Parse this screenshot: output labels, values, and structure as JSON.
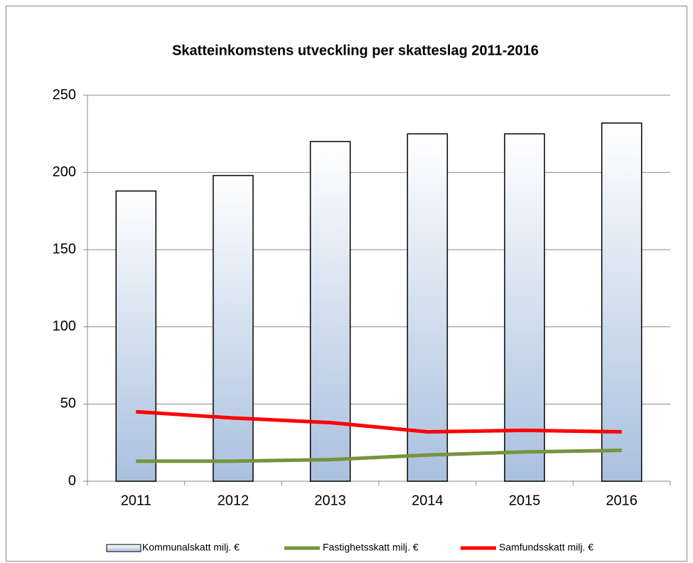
{
  "chart_data": {
    "type": "combo",
    "title": "Skatteinkomstens utveckling per skatteslag 2011-2016",
    "categories": [
      "2011",
      "2012",
      "2013",
      "2014",
      "2015",
      "2016"
    ],
    "series": [
      {
        "name": "Kommunalskatt milj. €",
        "type": "bar",
        "color": "#a9c0de",
        "values": [
          188,
          198,
          220,
          225,
          225,
          232
        ]
      },
      {
        "name": "Fastighetsskatt milj. €",
        "type": "line",
        "color": "#77933c",
        "values": [
          13,
          13,
          14,
          17,
          19,
          20
        ]
      },
      {
        "name": "Samfundsskatt milj. €",
        "type": "line",
        "color": "#ff0000",
        "values": [
          45,
          41,
          38,
          32,
          33,
          32
        ]
      }
    ],
    "ylim": [
      0,
      250
    ],
    "yticks": [
      0,
      50,
      100,
      150,
      200,
      250
    ],
    "grid": true,
    "legend": "bottom"
  }
}
